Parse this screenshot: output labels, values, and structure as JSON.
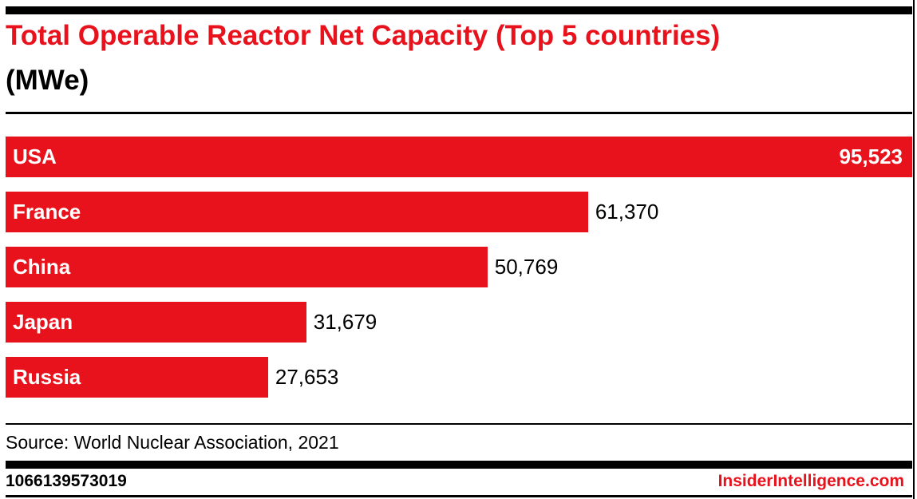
{
  "page": {
    "background": "#ffffff",
    "accent_red": "#e8121c",
    "text_black": "#000000",
    "bar_text_white": "#ffffff"
  },
  "header": {
    "title_line1": "Total Operable Reactor Net Capacity (Top 5 countries)",
    "title_line2": "(MWe)"
  },
  "chart_data": {
    "type": "bar",
    "orientation": "horizontal",
    "title": "Total Operable Reactor Net Capacity (Top 5 countries) (MWe)",
    "categories": [
      "USA",
      "France",
      "China",
      "Japan",
      "Russia"
    ],
    "values": [
      95523,
      61370,
      50769,
      31679,
      27653
    ],
    "value_labels": [
      "95,523",
      "61,370",
      "50,769",
      "31,679",
      "27,653"
    ],
    "xlabel": "",
    "ylabel": "",
    "xlim": [
      0,
      95523
    ],
    "grid": false,
    "legend": false,
    "bar_color": "#e8121c",
    "category_label_position": "inside-left",
    "value_label_position": "outside-right-or-inside-when-full"
  },
  "footer": {
    "source": "Source: World Nuclear Association, 2021",
    "chart_id": "1066139573019",
    "brand": "InsiderIntelligence.com"
  }
}
